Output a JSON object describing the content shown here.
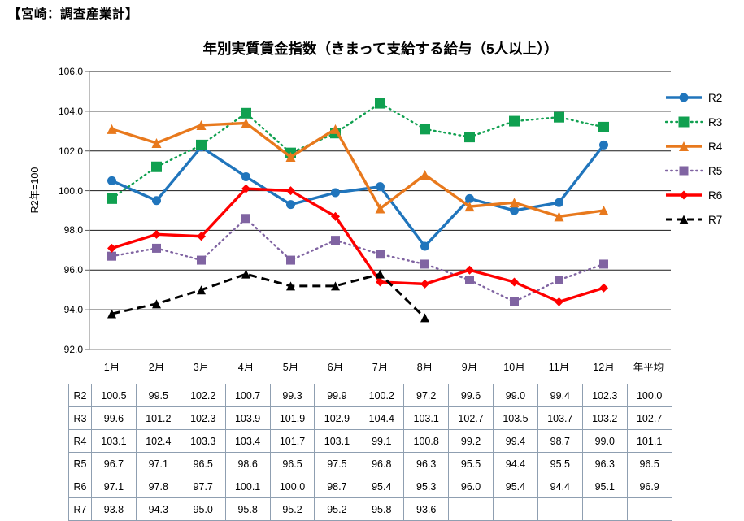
{
  "header": {
    "title": "【宮崎：調査産業計】"
  },
  "chart_data": {
    "type": "line",
    "title": "年別実質賃金指数（きまって支給する給与（5人以上））",
    "y_axis": {
      "title": "R2年=100",
      "min": 92.0,
      "max": 106.0,
      "step": 2.0
    },
    "categories": [
      "1月",
      "2月",
      "3月",
      "4月",
      "5月",
      "6月",
      "7月",
      "8月",
      "9月",
      "10月",
      "11月",
      "12月",
      "年平均"
    ],
    "plotted_categories": 12,
    "legend_position": "right",
    "gridlines": "horizontal",
    "colors": {
      "R2": "#2075BC",
      "R3": "#10A050",
      "R4": "#E8791D",
      "R5": "#8064A2",
      "R6": "#FF0000",
      "R7": "#000000",
      "table_border": "#8f9fb1",
      "gridline": "#1a1a1a",
      "axis": "#9b9b9b"
    },
    "series": [
      {
        "name": "R2",
        "color": "#2075BC",
        "line_style": "solid",
        "marker": "circle",
        "values": [
          "100.5",
          "99.5",
          "102.2",
          "100.7",
          "99.3",
          "99.9",
          "100.2",
          "97.2",
          "99.6",
          "99.0",
          "99.4",
          "102.3",
          "100.0"
        ]
      },
      {
        "name": "R3",
        "color": "#10A050",
        "line_style": "dotted",
        "marker": "square",
        "values": [
          "99.6",
          "101.2",
          "102.3",
          "103.9",
          "101.9",
          "102.9",
          "104.4",
          "103.1",
          "102.7",
          "103.5",
          "103.7",
          "103.2",
          "102.7"
        ]
      },
      {
        "name": "R4",
        "color": "#E8791D",
        "line_style": "solid",
        "marker": "triangle",
        "values": [
          "103.1",
          "102.4",
          "103.3",
          "103.4",
          "101.7",
          "103.1",
          "99.1",
          "100.8",
          "99.2",
          "99.4",
          "98.7",
          "99.0",
          "101.1"
        ]
      },
      {
        "name": "R5",
        "color": "#8064A2",
        "line_style": "dotted",
        "marker": "square",
        "values": [
          "96.7",
          "97.1",
          "96.5",
          "98.6",
          "96.5",
          "97.5",
          "96.8",
          "96.3",
          "95.5",
          "94.4",
          "95.5",
          "96.3",
          "96.5"
        ]
      },
      {
        "name": "R6",
        "color": "#FF0000",
        "line_style": "solid",
        "marker": "diamond",
        "values": [
          "97.1",
          "97.8",
          "97.7",
          "100.1",
          "100.0",
          "98.7",
          "95.4",
          "95.3",
          "96.0",
          "95.4",
          "94.4",
          "95.1",
          "96.9"
        ]
      },
      {
        "name": "R7",
        "color": "#000000",
        "line_style": "dashed",
        "marker": "triangle",
        "values": [
          "93.8",
          "94.3",
          "95.0",
          "95.8",
          "95.2",
          "95.2",
          "95.8",
          "93.6",
          "",
          "",
          "",
          "",
          ""
        ]
      }
    ]
  }
}
